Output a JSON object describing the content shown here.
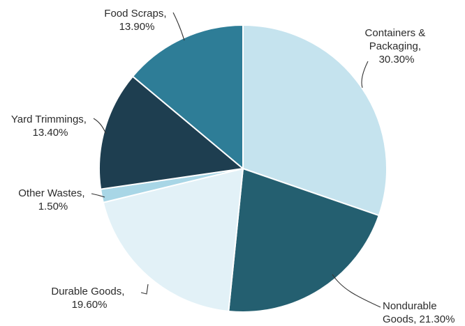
{
  "chart_data": {
    "type": "pie",
    "title": "",
    "slices": [
      {
        "name": "Containers & Packaging",
        "value": 30.3,
        "label_lines": [
          "Containers &",
          "Packaging,",
          "30.30%"
        ],
        "color": "#c5e3ee"
      },
      {
        "name": "Nondurable Goods",
        "value": 21.3,
        "label_lines": [
          "Nondurable",
          "Goods, 21.30%"
        ],
        "color": "#245f70"
      },
      {
        "name": "Durable Goods",
        "value": 19.6,
        "label_lines": [
          "Durable Goods,",
          "19.60%"
        ],
        "color": "#e2f1f7"
      },
      {
        "name": "Other Wastes",
        "value": 1.5,
        "label_lines": [
          "Other Wastes,",
          "1.50%"
        ],
        "color": "#a8d6e6"
      },
      {
        "name": "Yard Trimmings",
        "value": 13.4,
        "label_lines": [
          "Yard Trimmings,",
          "13.40%"
        ],
        "color": "#1e3e50"
      },
      {
        "name": "Food Scraps",
        "value": 13.9,
        "label_lines": [
          "Food Scraps,",
          "13.90%"
        ],
        "color": "#2e7d97"
      }
    ]
  }
}
